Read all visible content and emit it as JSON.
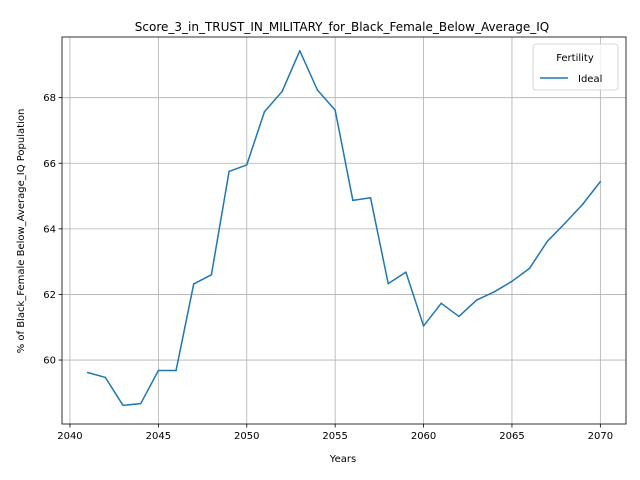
{
  "chart_data": {
    "type": "line",
    "title": "Score_3_in_TRUST_IN_MILITARY_for_Black_Female_Below_Average_IQ",
    "xlabel": "Years",
    "ylabel": "% of Black_Female Below_Average_IQ Population",
    "xlim": [
      2039.55,
      2071.45
    ],
    "ylim": [
      58.05,
      69.85
    ],
    "xticks": [
      2040,
      2045,
      2050,
      2055,
      2060,
      2065,
      2070
    ],
    "yticks": [
      60,
      62,
      64,
      66,
      68
    ],
    "grid": true,
    "legend": {
      "title": "Fertility",
      "placement": "top-right"
    },
    "series": [
      {
        "name": "Ideal",
        "color": "#1f77b4",
        "x": [
          2041,
          2042,
          2043,
          2044,
          2045,
          2046,
          2047,
          2048,
          2049,
          2050,
          2051,
          2052,
          2053,
          2054,
          2055,
          2056,
          2057,
          2058,
          2059,
          2060,
          2061,
          2062,
          2063,
          2064,
          2065,
          2066,
          2067,
          2068,
          2069,
          2070
        ],
        "y": [
          59.62,
          59.47,
          58.62,
          58.67,
          59.68,
          59.68,
          62.32,
          62.6,
          65.75,
          65.95,
          67.57,
          68.19,
          69.43,
          68.23,
          67.62,
          64.87,
          64.95,
          62.33,
          62.68,
          61.04,
          61.73,
          61.33,
          61.83,
          62.08,
          62.4,
          62.8,
          63.62,
          64.17,
          64.75,
          65.44
        ]
      }
    ]
  }
}
